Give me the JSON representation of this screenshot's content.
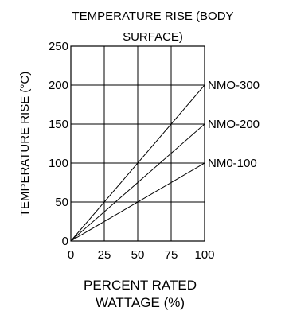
{
  "chart_data": {
    "type": "line",
    "title": "TEMPERATURE RISE (BODY SURFACE)",
    "title_lines": [
      "TEMPERATURE RISE (BODY",
      "SURFACE)"
    ],
    "xlabel": "PERCENT RATED WATTAGE (%)",
    "xlabel_lines": [
      "PERCENT RATED",
      "WATTAGE (%)"
    ],
    "ylabel": "TEMPERATURE RISE (°C)",
    "xlim": [
      0,
      100
    ],
    "ylim": [
      0,
      250
    ],
    "x_ticks": [
      0,
      25,
      50,
      75,
      100
    ],
    "y_ticks": [
      0,
      50,
      100,
      150,
      200,
      250
    ],
    "x_tick_labels": [
      "0",
      "25",
      "50",
      "75",
      "100"
    ],
    "y_tick_labels": [
      "0",
      "50",
      "100",
      "150",
      "200",
      "250"
    ],
    "grid": true,
    "series": [
      {
        "name": "NMO-300",
        "x": [
          0,
          100
        ],
        "y": [
          0,
          200
        ]
      },
      {
        "name": "NMO-200",
        "x": [
          0,
          100
        ],
        "y": [
          0,
          150
        ]
      },
      {
        "name": "NM0-100",
        "x": [
          0,
          100
        ],
        "y": [
          0,
          100
        ]
      }
    ],
    "colors": {
      "line": "#000000",
      "grid": "#000000",
      "background": "#ffffff"
    }
  }
}
